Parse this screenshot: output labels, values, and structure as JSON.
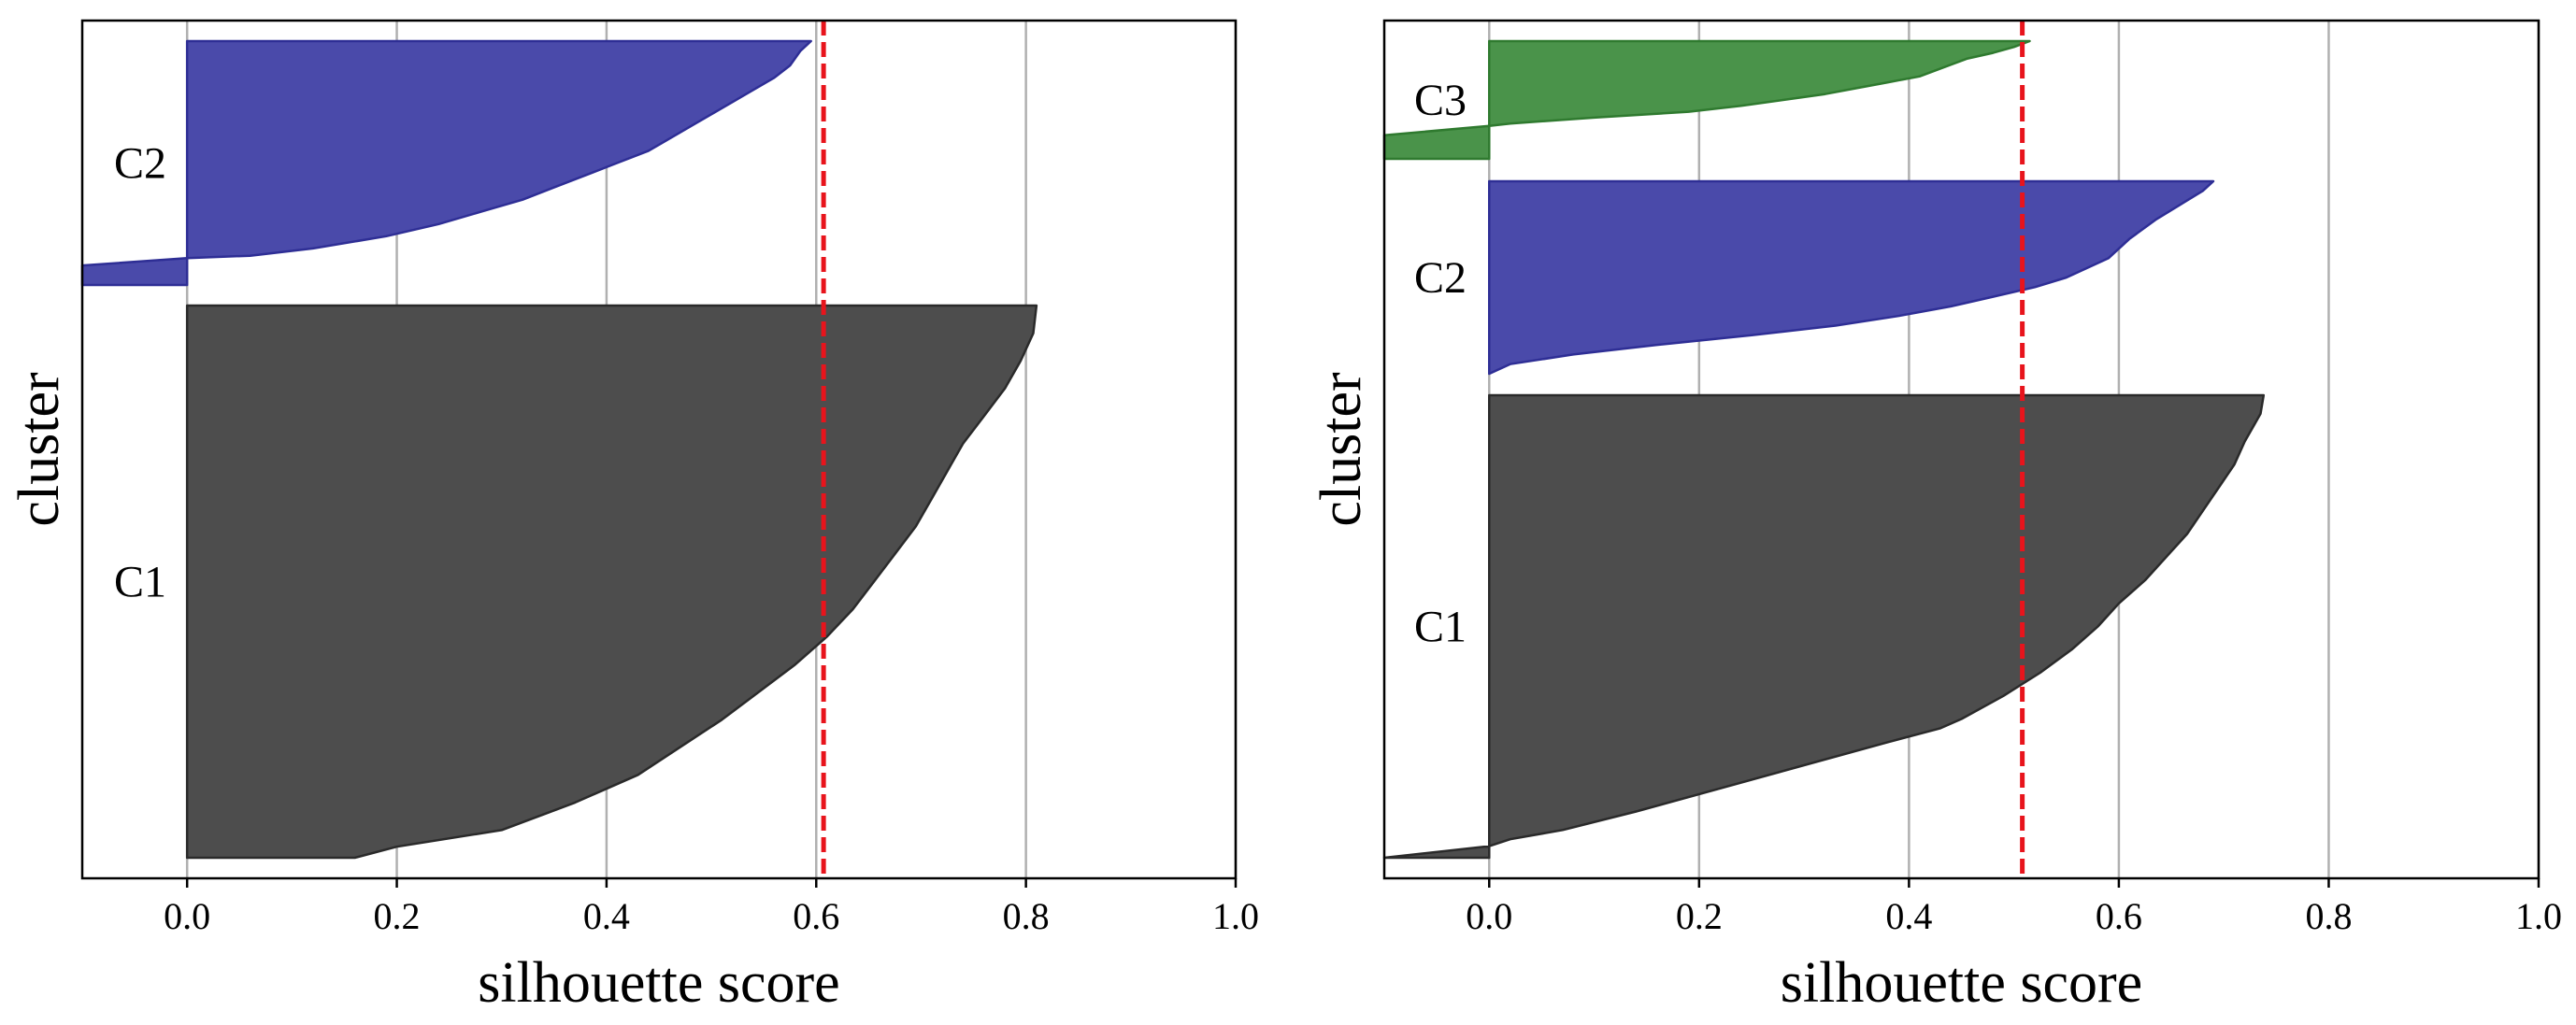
{
  "chart_data": [
    {
      "type": "silhouette",
      "xlabel": "silhouette score",
      "ylabel": "cluster",
      "xlim": [
        -0.1,
        1.0
      ],
      "xticks": [
        "0.0",
        "0.2",
        "0.4",
        "0.6",
        "0.8",
        "1.0"
      ],
      "grid": "vertical",
      "average_score": 0.607,
      "average_line_color": "#e8141c",
      "clusters": [
        {
          "name": "C1",
          "color": "#4d4d4d",
          "edge_color": "#2a2a2a",
          "count": 200,
          "profile": [
            [
              0,
              0.81
            ],
            [
              0.05,
              0.807
            ],
            [
              0.1,
              0.795
            ],
            [
              0.15,
              0.78
            ],
            [
              0.2,
              0.76
            ],
            [
              0.25,
              0.74
            ],
            [
              0.3,
              0.725
            ],
            [
              0.35,
              0.71
            ],
            [
              0.4,
              0.695
            ],
            [
              0.45,
              0.675
            ],
            [
              0.5,
              0.655
            ],
            [
              0.55,
              0.635
            ],
            [
              0.6,
              0.61
            ],
            [
              0.65,
              0.58
            ],
            [
              0.7,
              0.545
            ],
            [
              0.75,
              0.51
            ],
            [
              0.8,
              0.47
            ],
            [
              0.85,
              0.43
            ],
            [
              0.9,
              0.37
            ],
            [
              0.95,
              0.3
            ],
            [
              0.98,
              0.2
            ],
            [
              1,
              0.16
            ]
          ]
        },
        {
          "name": "C2",
          "color": "#4a4aaa",
          "edge_color": "#2e2e95",
          "count": 90,
          "profile": [
            [
              0,
              0.595
            ],
            [
              0.04,
              0.585
            ],
            [
              0.1,
              0.575
            ],
            [
              0.15,
              0.56
            ],
            [
              0.2,
              0.54
            ],
            [
              0.25,
              0.52
            ],
            [
              0.3,
              0.5
            ],
            [
              0.35,
              0.48
            ],
            [
              0.4,
              0.46
            ],
            [
              0.45,
              0.44
            ],
            [
              0.5,
              0.41
            ],
            [
              0.55,
              0.38
            ],
            [
              0.6,
              0.35
            ],
            [
              0.65,
              0.32
            ],
            [
              0.7,
              0.28
            ],
            [
              0.75,
              0.24
            ],
            [
              0.8,
              0.19
            ],
            [
              0.85,
              0.12
            ],
            [
              0.88,
              0.06
            ],
            [
              0.89,
              0
            ],
            [
              0.92,
              -0.1
            ],
            [
              1,
              -0.1
            ]
          ]
        }
      ]
    },
    {
      "type": "silhouette",
      "xlabel": "silhouette score",
      "ylabel": "cluster",
      "xlim": [
        -0.1,
        1.0
      ],
      "xticks": [
        "0.0",
        "0.2",
        "0.4",
        "0.6",
        "0.8",
        "1.0"
      ],
      "grid": "vertical",
      "average_score": 0.508,
      "average_line_color": "#e8141c",
      "clusters": [
        {
          "name": "C1",
          "color": "#4d4d4d",
          "edge_color": "#2a2a2a",
          "count": 190,
          "profile": [
            [
              0,
              0.738
            ],
            [
              0.04,
              0.735
            ],
            [
              0.1,
              0.72
            ],
            [
              0.15,
              0.71
            ],
            [
              0.2,
              0.695
            ],
            [
              0.25,
              0.68
            ],
            [
              0.3,
              0.665
            ],
            [
              0.35,
              0.645
            ],
            [
              0.4,
              0.625
            ],
            [
              0.45,
              0.6
            ],
            [
              0.5,
              0.58
            ],
            [
              0.55,
              0.555
            ],
            [
              0.6,
              0.525
            ],
            [
              0.65,
              0.49
            ],
            [
              0.7,
              0.45
            ],
            [
              0.72,
              0.43
            ],
            [
              0.75,
              0.38
            ],
            [
              0.8,
              0.3
            ],
            [
              0.85,
              0.22
            ],
            [
              0.9,
              0.14
            ],
            [
              0.94,
              0.07
            ],
            [
              0.96,
              0.02
            ],
            [
              0.975,
              0
            ],
            [
              1,
              -0.1
            ]
          ]
        },
        {
          "name": "C2",
          "color": "#4a4aaa",
          "edge_color": "#2e2e95",
          "count": 85,
          "profile": [
            [
              0,
              0.69
            ],
            [
              0.05,
              0.68
            ],
            [
              0.1,
              0.665
            ],
            [
              0.15,
              0.65
            ],
            [
              0.2,
              0.635
            ],
            [
              0.3,
              0.61
            ],
            [
              0.4,
              0.59
            ],
            [
              0.5,
              0.55
            ],
            [
              0.55,
              0.52
            ],
            [
              0.6,
              0.48
            ],
            [
              0.65,
              0.44
            ],
            [
              0.7,
              0.39
            ],
            [
              0.75,
              0.33
            ],
            [
              0.8,
              0.25
            ],
            [
              0.85,
              0.16
            ],
            [
              0.9,
              0.08
            ],
            [
              0.95,
              0.02
            ],
            [
              1,
              0
            ]
          ]
        },
        {
          "name": "C3",
          "color": "#4a934a",
          "edge_color": "#2f7a2f",
          "count": 45,
          "profile": [
            [
              0,
              0.515
            ],
            [
              0.05,
              0.5
            ],
            [
              0.1,
              0.48
            ],
            [
              0.15,
              0.455
            ],
            [
              0.2,
              0.44
            ],
            [
              0.3,
              0.41
            ],
            [
              0.35,
              0.38
            ],
            [
              0.4,
              0.35
            ],
            [
              0.45,
              0.32
            ],
            [
              0.5,
              0.28
            ],
            [
              0.55,
              0.24
            ],
            [
              0.6,
              0.19
            ],
            [
              0.65,
              0.1
            ],
            [
              0.7,
              0.02
            ],
            [
              0.72,
              0
            ],
            [
              0.8,
              -0.1
            ],
            [
              1,
              -0.1
            ]
          ]
        }
      ]
    }
  ]
}
